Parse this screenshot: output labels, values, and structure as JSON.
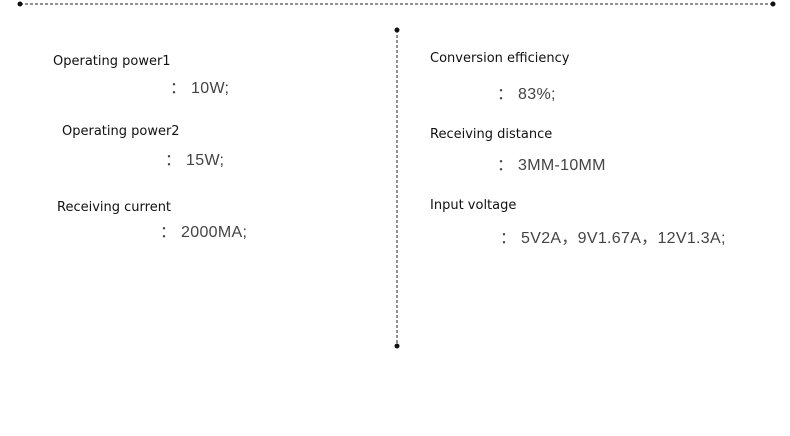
{
  "left": [
    {
      "label": "Operating power1",
      "value": "： 10W;"
    },
    {
      "label": "Operating power2",
      "value": "： 15W;"
    },
    {
      "label": "Receiving current",
      "value": "： 2000MA;"
    }
  ],
  "right": [
    {
      "label": "Conversion efficiency",
      "value": "： 83%;"
    },
    {
      "label": "Receiving distance",
      "value": "： 3MM-10MM"
    },
    {
      "label": "Input voltage",
      "value": "： 5V2A，9V1.67A，12V1.3A;"
    }
  ]
}
